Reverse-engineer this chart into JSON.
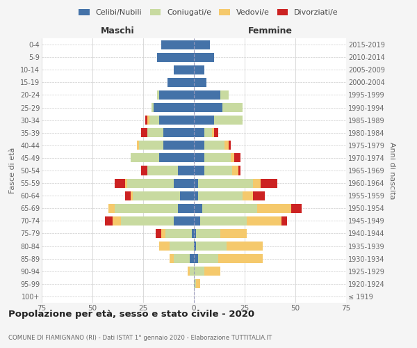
{
  "age_groups": [
    "100+",
    "95-99",
    "90-94",
    "85-89",
    "80-84",
    "75-79",
    "70-74",
    "65-69",
    "60-64",
    "55-59",
    "50-54",
    "45-49",
    "40-44",
    "35-39",
    "30-34",
    "25-29",
    "20-24",
    "15-19",
    "10-14",
    "5-9",
    "0-4"
  ],
  "birth_years": [
    "≤ 1919",
    "1920-1924",
    "1925-1929",
    "1930-1934",
    "1935-1939",
    "1940-1944",
    "1945-1949",
    "1950-1954",
    "1955-1959",
    "1960-1964",
    "1965-1969",
    "1970-1974",
    "1975-1979",
    "1980-1984",
    "1985-1989",
    "1990-1994",
    "1995-1999",
    "2000-2004",
    "2005-2009",
    "2010-2014",
    "2015-2019"
  ],
  "male": {
    "celibi": [
      0,
      0,
      0,
      2,
      0,
      1,
      10,
      8,
      7,
      10,
      8,
      17,
      15,
      15,
      17,
      20,
      17,
      13,
      10,
      18,
      16
    ],
    "coniugati": [
      0,
      0,
      2,
      8,
      12,
      13,
      26,
      31,
      23,
      23,
      15,
      14,
      12,
      8,
      5,
      1,
      1,
      0,
      0,
      0,
      0
    ],
    "vedovi": [
      0,
      0,
      1,
      2,
      5,
      2,
      4,
      3,
      1,
      1,
      0,
      0,
      1,
      0,
      1,
      0,
      0,
      0,
      0,
      0,
      0
    ],
    "divorziati": [
      0,
      0,
      0,
      0,
      0,
      3,
      4,
      0,
      3,
      5,
      3,
      0,
      0,
      3,
      1,
      0,
      0,
      0,
      0,
      0,
      0
    ]
  },
  "female": {
    "nubili": [
      0,
      0,
      0,
      2,
      1,
      1,
      3,
      4,
      2,
      2,
      5,
      5,
      5,
      5,
      10,
      14,
      13,
      6,
      5,
      10,
      8
    ],
    "coniugate": [
      0,
      1,
      5,
      10,
      15,
      12,
      23,
      27,
      22,
      27,
      14,
      13,
      10,
      4,
      14,
      10,
      4,
      0,
      0,
      0,
      0
    ],
    "vedove": [
      0,
      2,
      8,
      22,
      18,
      13,
      17,
      17,
      5,
      4,
      3,
      2,
      2,
      1,
      0,
      0,
      0,
      0,
      0,
      0,
      0
    ],
    "divorziate": [
      0,
      0,
      0,
      0,
      0,
      0,
      3,
      5,
      6,
      8,
      1,
      3,
      1,
      2,
      0,
      0,
      0,
      0,
      0,
      0,
      0
    ]
  },
  "colors": {
    "celibi": "#4472a8",
    "coniugati": "#c8daa0",
    "vedovi": "#f5c96c",
    "divorziati": "#cc2222"
  },
  "xlim": 75,
  "title": "Popolazione per età, sesso e stato civile - 2020",
  "subtitle": "COMUNE DI FIAMIGNANO (RI) - Dati ISTAT 1° gennaio 2020 - Elaborazione TUTTITALIA.IT",
  "ylabel": "Fasce di età",
  "ylabel2": "Anni di nascita",
  "xlabel_left": "Maschi",
  "xlabel_right": "Femmine",
  "bg_color": "#f5f5f5",
  "plot_bg": "#ffffff"
}
